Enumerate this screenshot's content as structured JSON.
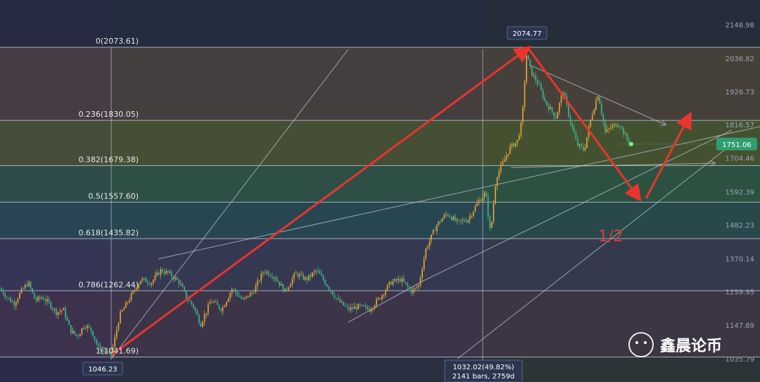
{
  "chart_data": {
    "type": "candlestick",
    "y_axis_ticks": [
      "2148.98",
      "2036.82",
      "1926.73",
      "1816.57",
      "1704.46",
      "1592.39",
      "1482.23",
      "1370.14",
      "1259.95",
      "1147.89",
      "1035.79"
    ],
    "y_axis_tick_values": [
      2148.98,
      2036.82,
      1926.73,
      1816.57,
      1704.46,
      1592.39,
      1482.23,
      1370.14,
      1259.95,
      1147.89,
      1035.79
    ],
    "ylim": [
      1028,
      2165
    ],
    "fib_levels": [
      {
        "label": "0(2073.61)",
        "value": 2073.61
      },
      {
        "label": "0.236(1830.05)",
        "value": 1830.05
      },
      {
        "label": "0.382(1679.38)",
        "value": 1679.38
      },
      {
        "label": "0.5(1557.60)",
        "value": 1557.6
      },
      {
        "label": "0.618(1435.82)",
        "value": 1435.82
      },
      {
        "label": "0.786(1262.44)",
        "value": 1262.44
      },
      {
        "label": "1(1041.69)",
        "value": 1041.69
      }
    ],
    "high_label": "2074.77",
    "high_value": 2074.77,
    "low_label": "1046.23",
    "low_value": 1046.23,
    "current_price": "1751.06",
    "current_value": 1751.06,
    "measure_box": {
      "line1": "1032.02(49.82%)",
      "line2": "2141 bars, 2759d"
    },
    "annotation": "1/2",
    "colors": {
      "up": "#d9a03a",
      "down": "#3fae8a",
      "arrow": "#e8352e",
      "trend": "#c8ccd6",
      "price_tag": "#2e9e6e"
    }
  },
  "watermark": {
    "icon": "wechat-icon",
    "text": "鑫晨论币"
  }
}
